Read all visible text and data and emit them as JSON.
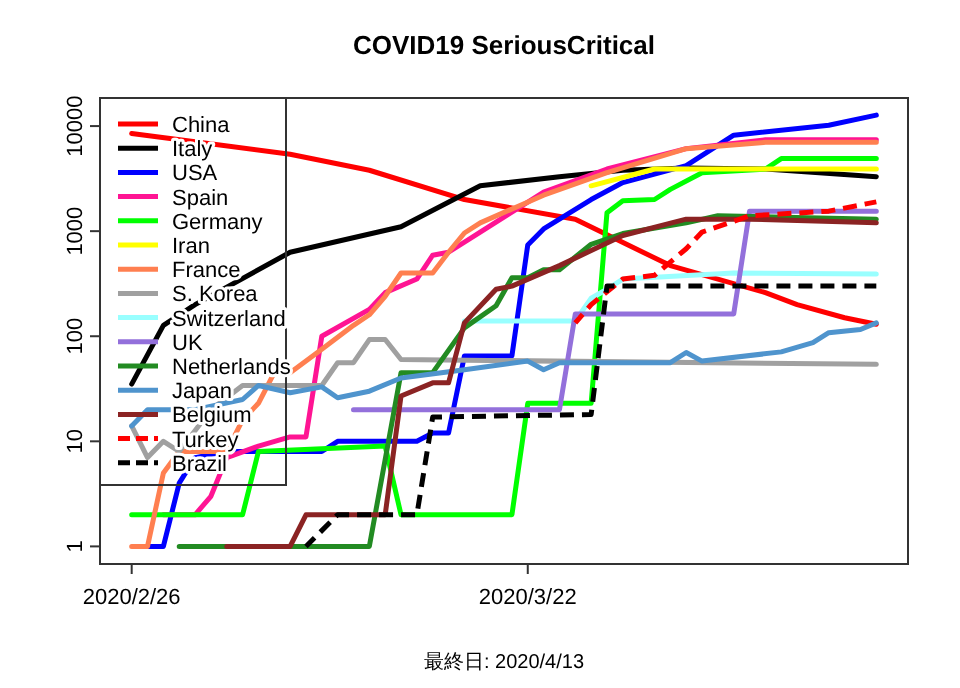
{
  "chart_data": {
    "type": "line",
    "title": "COVID19 SeriousCritical",
    "annotations": [
      "最終日: 2020/4/13"
    ],
    "log": "y",
    "legend": "top left",
    "grid": false,
    "xlim": [
      "2020-02-24",
      "2020-04-15"
    ],
    "xticks": [
      {
        "value": "2020-02-26",
        "label": "2020/2/26"
      },
      {
        "value": "2020-03-22",
        "label": "2020/3/22"
      }
    ],
    "ylim": [
      0.68,
      18500
    ],
    "yticks": [
      1,
      10,
      100,
      1000,
      10000
    ],
    "series": [
      {
        "name": "China",
        "color": "#ff0000",
        "line_style": "solid",
        "x": [
          "2020-02-26",
          "2020-03-01",
          "2020-03-07",
          "2020-03-12",
          "2020-03-18",
          "2020-03-25",
          "2020-03-31",
          "2020-04-06",
          "2020-04-08",
          "2020-04-11",
          "2020-04-13"
        ],
        "values": [
          8500,
          7100,
          5400,
          3800,
          2000,
          1300,
          470,
          260,
          200,
          150,
          130
        ]
      },
      {
        "name": "Italy",
        "color": "#000000",
        "line_style": "solid",
        "x": [
          "2020-02-26",
          "2020-02-28",
          "2020-03-01",
          "2020-03-07",
          "2020-03-14",
          "2020-03-19",
          "2020-03-24",
          "2020-03-28",
          "2020-04-01",
          "2020-04-06",
          "2020-04-13"
        ],
        "values": [
          35,
          127,
          200,
          630,
          1100,
          2700,
          3300,
          3800,
          4000,
          3900,
          3300
        ]
      },
      {
        "name": "USA",
        "color": "#0000ff",
        "line_style": "solid",
        "x": [
          "2020-02-27",
          "2020-02-28",
          "2020-02-29",
          "2020-03-01",
          "2020-03-03",
          "2020-03-09",
          "2020-03-10",
          "2020-03-15",
          "2020-03-16",
          "2020-03-17",
          "2020-03-18",
          "2020-03-21",
          "2020-03-22",
          "2020-03-23",
          "2020-03-26",
          "2020-03-28",
          "2020-04-01",
          "2020-04-04",
          "2020-04-10",
          "2020-04-13"
        ],
        "values": [
          1,
          1,
          4,
          7,
          8,
          8,
          10,
          10,
          12,
          12,
          65,
          65,
          740,
          1050,
          2000,
          2900,
          4200,
          8200,
          10200,
          12700
        ]
      },
      {
        "name": "Spain",
        "color": "#ff1493",
        "line_style": "solid",
        "x": [
          "2020-02-28",
          "2020-03-01",
          "2020-03-02",
          "2020-03-03",
          "2020-03-05",
          "2020-03-07",
          "2020-03-08",
          "2020-03-09",
          "2020-03-12",
          "2020-03-13",
          "2020-03-15",
          "2020-03-16",
          "2020-03-17",
          "2020-03-19",
          "2020-03-23",
          "2020-03-27",
          "2020-04-01",
          "2020-04-06",
          "2020-04-13"
        ],
        "values": [
          2,
          2,
          3,
          7,
          9,
          11,
          11,
          100,
          180,
          260,
          350,
          590,
          630,
          980,
          2350,
          3900,
          6100,
          7400,
          7400
        ]
      },
      {
        "name": "Germany",
        "color": "#00ff00",
        "line_style": "solid",
        "x": [
          "2020-02-26",
          "2020-03-04",
          "2020-03-05",
          "2020-03-13",
          "2020-03-14",
          "2020-03-21",
          "2020-03-22",
          "2020-03-26",
          "2020-03-27",
          "2020-03-28",
          "2020-03-30",
          "2020-03-31",
          "2020-04-02",
          "2020-04-06",
          "2020-04-07",
          "2020-04-13"
        ],
        "values": [
          2,
          2,
          8,
          9,
          2,
          2,
          23,
          23,
          1500,
          1950,
          2000,
          2500,
          3600,
          3900,
          4900,
          4900
        ]
      },
      {
        "name": "Iran",
        "color": "#ffff00",
        "line_style": "solid",
        "x": [
          "2020-03-26",
          "2020-03-30",
          "2020-04-13"
        ],
        "values": [
          2700,
          3900,
          3900
        ]
      },
      {
        "name": "France",
        "color": "#ff7f50",
        "line_style": "solid",
        "x": [
          "2020-02-26",
          "2020-02-27",
          "2020-02-28",
          "2020-02-29",
          "2020-03-03",
          "2020-03-04",
          "2020-03-05",
          "2020-03-06",
          "2020-03-07",
          "2020-03-09",
          "2020-03-11",
          "2020-03-12",
          "2020-03-13",
          "2020-03-14",
          "2020-03-16",
          "2020-03-17",
          "2020-03-18",
          "2020-03-19",
          "2020-03-23",
          "2020-03-27",
          "2020-04-01",
          "2020-04-06",
          "2020-04-13"
        ],
        "values": [
          1,
          1,
          5,
          8,
          8,
          16,
          23,
          45,
          45,
          75,
          127,
          160,
          240,
          400,
          400,
          630,
          960,
          1200,
          2200,
          3600,
          6100,
          7000,
          7000
        ]
      },
      {
        "name": "S. Korea",
        "color": "#a0a0a0",
        "line_style": "solid",
        "x": [
          "2020-02-26",
          "2020-02-27",
          "2020-02-28",
          "2020-02-29",
          "2020-03-02",
          "2020-03-04",
          "2020-03-07",
          "2020-03-09",
          "2020-03-10",
          "2020-03-11",
          "2020-03-12",
          "2020-03-13",
          "2020-03-14",
          "2020-04-13"
        ],
        "values": [
          14,
          7,
          10,
          8,
          20,
          34,
          34,
          34,
          56,
          56,
          93,
          93,
          60,
          54
        ]
      },
      {
        "name": "Switzerland",
        "color": "#99ffff",
        "line_style": "solid",
        "x": [
          "2020-03-18",
          "2020-03-25",
          "2020-03-26",
          "2020-03-27",
          "2020-03-28",
          "2020-04-04",
          "2020-04-13"
        ],
        "values": [
          140,
          140,
          230,
          280,
          350,
          400,
          390
        ]
      },
      {
        "name": "UK",
        "color": "#9370db",
        "line_style": "solid",
        "x": [
          "2020-03-11",
          "2020-03-24",
          "2020-03-25",
          "2020-04-04",
          "2020-04-05",
          "2020-04-13"
        ],
        "values": [
          20,
          20,
          163,
          163,
          1550,
          1550
        ]
      },
      {
        "name": "Netherlands",
        "color": "#228b22",
        "line_style": "solid",
        "x": [
          "2020-02-29",
          "2020-03-12",
          "2020-03-14",
          "2020-03-16",
          "2020-03-18",
          "2020-03-20",
          "2020-03-21",
          "2020-03-22",
          "2020-03-23",
          "2020-03-24",
          "2020-03-26",
          "2020-03-28",
          "2020-04-01",
          "2020-04-03",
          "2020-04-13"
        ],
        "values": [
          1,
          1,
          45,
          45,
          120,
          195,
          360,
          360,
          430,
          430,
          750,
          950,
          1200,
          1400,
          1300
        ]
      },
      {
        "name": "Japan",
        "color": "#4f94cd",
        "line_style": "solid",
        "x": [
          "2020-02-26",
          "2020-02-27",
          "2020-03-01",
          "2020-03-04",
          "2020-03-05",
          "2020-03-07",
          "2020-03-09",
          "2020-03-10",
          "2020-03-12",
          "2020-03-14",
          "2020-03-18",
          "2020-03-22",
          "2020-03-23",
          "2020-03-24",
          "2020-03-31",
          "2020-04-01",
          "2020-04-02",
          "2020-04-07",
          "2020-04-09",
          "2020-04-10",
          "2020-04-12",
          "2020-04-13"
        ],
        "values": [
          14,
          20,
          20,
          25,
          34,
          29,
          33,
          26,
          30,
          40,
          48,
          58,
          48,
          56,
          56,
          70,
          58,
          71,
          87,
          108,
          116,
          134
        ]
      },
      {
        "name": "Belgium",
        "color": "#8b2323",
        "line_style": "solid",
        "x": [
          "2020-03-03",
          "2020-03-07",
          "2020-03-08",
          "2020-03-13",
          "2020-03-14",
          "2020-03-16",
          "2020-03-17",
          "2020-03-18",
          "2020-03-20",
          "2020-03-21",
          "2020-03-24",
          "2020-03-28",
          "2020-04-01",
          "2020-04-05",
          "2020-04-13"
        ],
        "values": [
          1,
          1,
          2,
          2,
          27,
          36,
          36,
          134,
          280,
          300,
          470,
          910,
          1300,
          1300,
          1200
        ]
      },
      {
        "name": "Turkey",
        "color": "#ff0000",
        "line_style": "dashed",
        "x": [
          "2020-03-25",
          "2020-03-26",
          "2020-03-28",
          "2020-03-30",
          "2020-04-01",
          "2020-04-02",
          "2020-04-05",
          "2020-04-10",
          "2020-04-13"
        ],
        "values": [
          134,
          200,
          350,
          380,
          680,
          980,
          1400,
          1550,
          1900
        ]
      },
      {
        "name": "Brazil",
        "color": "#000000",
        "line_style": "dashed",
        "x": [
          "2020-03-08",
          "2020-03-10",
          "2020-03-15",
          "2020-03-16",
          "2020-03-26",
          "2020-03-27",
          "2020-04-13"
        ],
        "values": [
          1,
          2,
          2,
          17,
          18,
          300,
          300
        ]
      }
    ]
  }
}
